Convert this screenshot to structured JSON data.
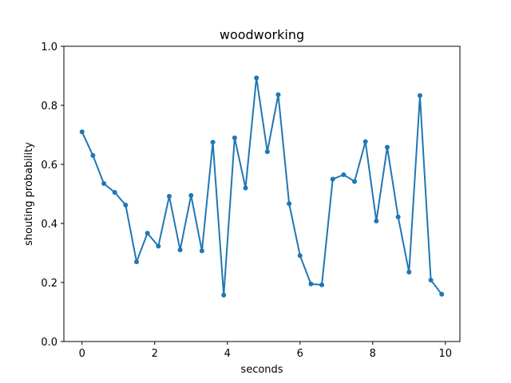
{
  "chart_data": {
    "type": "line",
    "title": "woodworking",
    "xlabel": "seconds",
    "ylabel": "shouting probability",
    "xlim": [
      -0.5,
      10.4
    ],
    "ylim": [
      0.0,
      1.0
    ],
    "xticks": [
      0,
      2,
      4,
      6,
      8,
      10
    ],
    "xtick_labels": [
      "0",
      "2",
      "4",
      "6",
      "8",
      "10"
    ],
    "yticks": [
      0.0,
      0.2,
      0.4,
      0.6,
      0.8,
      1.0
    ],
    "ytick_labels": [
      "0.0",
      "0.2",
      "0.4",
      "0.6",
      "0.8",
      "1.0"
    ],
    "grid": false,
    "legend": false,
    "series": [
      {
        "color": "#1f77b4",
        "marker": "circle",
        "x": [
          0.0,
          0.3,
          0.6,
          0.9,
          1.2,
          1.5,
          1.8,
          2.1,
          2.4,
          2.7,
          3.0,
          3.3,
          3.6,
          3.9,
          4.2,
          4.5,
          4.8,
          5.1,
          5.4,
          5.7,
          6.0,
          6.3,
          6.6,
          6.9,
          7.2,
          7.5,
          7.8,
          8.1,
          8.4,
          8.7,
          9.0,
          9.3,
          9.6,
          9.9
        ],
        "y": [
          0.71,
          0.63,
          0.535,
          0.505,
          0.462,
          0.27,
          0.367,
          0.323,
          0.492,
          0.31,
          0.495,
          0.307,
          0.675,
          0.157,
          0.69,
          0.52,
          0.893,
          0.643,
          0.836,
          0.467,
          0.291,
          0.195,
          0.192,
          0.55,
          0.565,
          0.542,
          0.677,
          0.408,
          0.658,
          0.422,
          0.235,
          0.833,
          0.208,
          0.16
        ]
      }
    ]
  }
}
